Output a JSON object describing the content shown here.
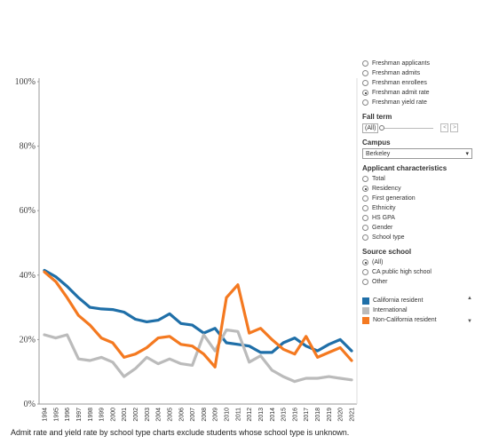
{
  "chart_data": {
    "type": "line",
    "x": [
      "1994",
      "1995",
      "1996",
      "1997",
      "1998",
      "1999",
      "2000",
      "2001",
      "2002",
      "2003",
      "2004",
      "2005",
      "2006",
      "2007",
      "2008",
      "2009",
      "2010",
      "2011",
      "2012",
      "2013",
      "2014",
      "2015",
      "2016",
      "2017",
      "2018",
      "2019",
      "2020",
      "2021"
    ],
    "series": [
      {
        "name": "California resident",
        "color": "#1f6fa8",
        "values": [
          41.5,
          39.5,
          36.5,
          33.0,
          30.0,
          29.5,
          29.3,
          28.5,
          26.3,
          25.5,
          26.0,
          28.0,
          25.0,
          24.5,
          22.0,
          23.5,
          19.0,
          18.5,
          18.0,
          16.0,
          16.0,
          19.0,
          20.5,
          18.0,
          16.5,
          18.5,
          20.0,
          16.5
        ]
      },
      {
        "name": "International",
        "color": "#bbbbbb",
        "values": [
          21.5,
          20.5,
          21.5,
          14.0,
          13.5,
          14.5,
          13.0,
          8.5,
          11.0,
          14.5,
          12.5,
          14.0,
          12.5,
          12.0,
          21.5,
          16.5,
          23.0,
          22.5,
          13.0,
          15.0,
          10.5,
          8.5,
          7.0,
          8.0,
          8.0,
          8.5,
          8.0,
          7.5
        ]
      },
      {
        "name": "Non-California resident",
        "color": "#f47920",
        "values": [
          41.0,
          38.0,
          33.0,
          27.5,
          24.5,
          20.5,
          19.0,
          14.5,
          15.5,
          17.5,
          20.5,
          21.0,
          18.5,
          18.0,
          15.5,
          11.5,
          33.0,
          37.0,
          22.0,
          23.5,
          20.0,
          17.0,
          15.5,
          21.0,
          14.5,
          16.0,
          17.5,
          13.5
        ]
      }
    ],
    "y_ticks": [
      "0%",
      "20%",
      "40%",
      "60%",
      "80%",
      "100%"
    ],
    "ylim": [
      0,
      100
    ],
    "grid": false,
    "legend_position": "right"
  },
  "note": "Admit rate and yield rate by school type charts exclude students whose school type is unknown.",
  "measure_options": [
    {
      "label": "Freshman applicants",
      "selected": false
    },
    {
      "label": "Freshman admits",
      "selected": false
    },
    {
      "label": "Freshman enrollees",
      "selected": false
    },
    {
      "label": "Freshman admit rate",
      "selected": true
    },
    {
      "label": "Freshman yield rate",
      "selected": false
    }
  ],
  "fall_term": {
    "title": "Fall term",
    "value": "(All)",
    "prev": "<",
    "next": ">"
  },
  "campus": {
    "title": "Campus",
    "value": "Berkeley",
    "caret": "▾"
  },
  "applicant_characteristics": {
    "title": "Applicant characteristics",
    "options": [
      {
        "label": "Total",
        "selected": false
      },
      {
        "label": "Residency",
        "selected": true
      },
      {
        "label": "First generation",
        "selected": false
      },
      {
        "label": "Ethnicity",
        "selected": false
      },
      {
        "label": "HS GPA",
        "selected": false
      },
      {
        "label": "Gender",
        "selected": false
      },
      {
        "label": "School type",
        "selected": false
      }
    ]
  },
  "source_school": {
    "title": "Source school",
    "options": [
      {
        "label": "(All)",
        "selected": true
      },
      {
        "label": "CA public high school",
        "selected": false
      },
      {
        "label": "Other",
        "selected": false
      }
    ]
  },
  "legend_scroll": {
    "up": "▲",
    "down": "▼"
  }
}
